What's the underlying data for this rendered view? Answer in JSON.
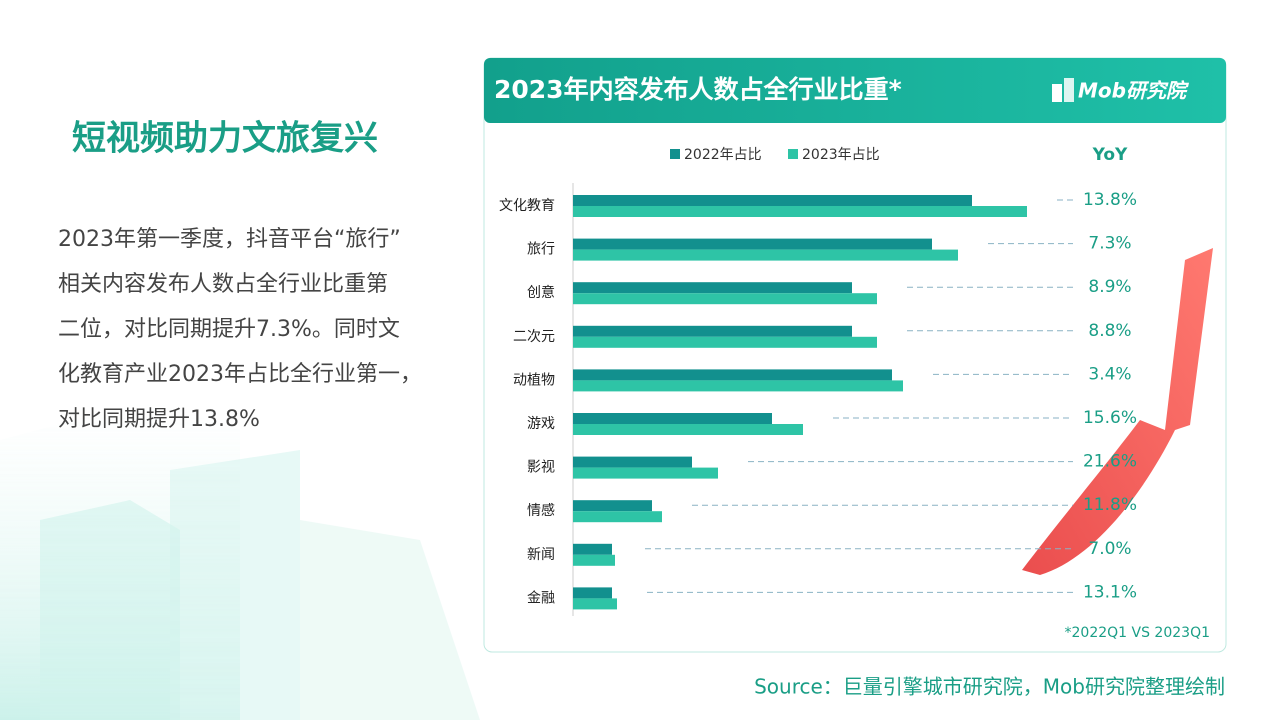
{
  "slide": {
    "heading": "短视频助力文旅复兴",
    "paragraph": [
      "2023年第一季度，抖音平台“旅行”",
      "相关内容发布人数占全行业比重第",
      "二位，对比同期提升7.3%。同时文",
      "化教育产业2023年占比全行业第一，",
      "对比同期提升13.8%"
    ],
    "source": "Source：巨量引擎城市研究院，Mob研究院整理绘制",
    "logo": "Mob研究院"
  },
  "chart_data": {
    "type": "hbar",
    "title": "2023年内容发布人数占全行业比重*",
    "categories": [
      "文化教育",
      "旅行",
      "创意",
      "二次元",
      "动植物",
      "游戏",
      "影视",
      "情感",
      "新闻",
      "金融"
    ],
    "series": [
      {
        "name": "2022年占比",
        "color": "#12908e",
        "values": [
          3.99,
          3.59,
          2.79,
          2.79,
          3.19,
          1.99,
          1.19,
          0.79,
          0.39,
          0.39
        ]
      },
      {
        "name": "2023年占比",
        "color": "#2ec4a6",
        "values": [
          4.54,
          3.85,
          3.04,
          3.04,
          3.3,
          2.3,
          1.45,
          0.89,
          0.42,
          0.44
        ]
      }
    ],
    "xlim": [
      0,
      5
    ],
    "yoy_header": "YoY",
    "yoy_labels": [
      "13.8%",
      "7.3%",
      "8.9%",
      "8.8%",
      "3.4%",
      "15.6%",
      "21.6%",
      "11.8%",
      "7.0%",
      "13.1%"
    ],
    "footnote": "*2022Q1  VS 2023Q1"
  }
}
